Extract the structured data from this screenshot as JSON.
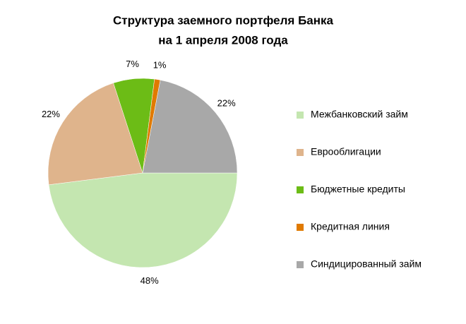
{
  "chart_data": {
    "type": "pie",
    "title": [
      "Структура заемного портфеля Банка",
      "на 1 апреля 2008 года"
    ],
    "categories": [
      "Межбанковский займ",
      "Еврооблигации",
      "Бюджетные кредиты",
      "Кредитная линия",
      "Синдицированный займ"
    ],
    "values": [
      48,
      22,
      7,
      1,
      22
    ],
    "value_labels": [
      "48%",
      "22%",
      "7%",
      "1%",
      "22%"
    ],
    "colors": [
      "#c4e6b0",
      "#dfb48c",
      "#6cbc16",
      "#e07a00",
      "#a8a8a8"
    ],
    "legend": "right"
  }
}
